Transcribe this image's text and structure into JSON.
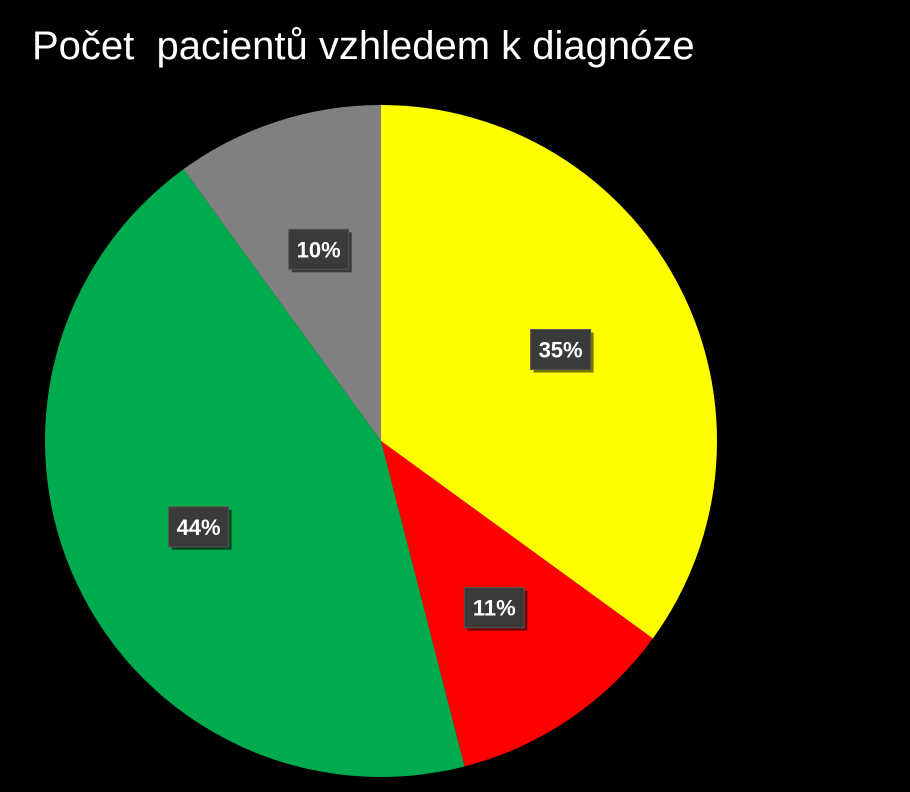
{
  "chart_data": {
    "type": "pie",
    "title": "Počet  pacientů vzhledem k diagnóze",
    "start_angle_deg": 0,
    "direction": "clockwise",
    "legend": "none",
    "slices": [
      {
        "value": 35,
        "label": "35%",
        "color": "#FFFF00"
      },
      {
        "value": 11,
        "label": "11%",
        "color": "#FF0000"
      },
      {
        "value": 44,
        "label": "44%",
        "color": "#00AA4E"
      },
      {
        "value": 10,
        "label": "10%",
        "color": "#808080"
      }
    ]
  }
}
